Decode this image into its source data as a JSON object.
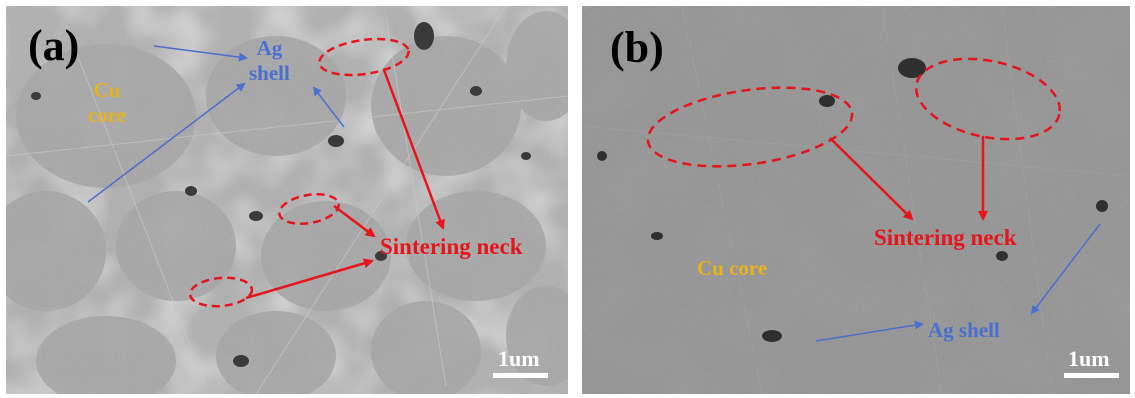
{
  "panels": [
    {
      "letter": "(a)",
      "labels": {
        "cu_core_line1": "Cu",
        "cu_core_line2": "core",
        "ag_shell_line1": "Ag",
        "ag_shell_line2": "shell",
        "sintering_neck": "Sintering neck",
        "scale": "1um"
      }
    },
    {
      "letter": "(b)",
      "labels": {
        "cu_core": "Cu core",
        "ag_shell": "Ag shell",
        "sintering_neck": "Sintering neck",
        "scale": "1um"
      }
    }
  ],
  "colors": {
    "cu_label": "#e8b31c",
    "ag_label": "#4a6fd0",
    "neck_label": "#e5151b",
    "scale": "#ffffff"
  }
}
